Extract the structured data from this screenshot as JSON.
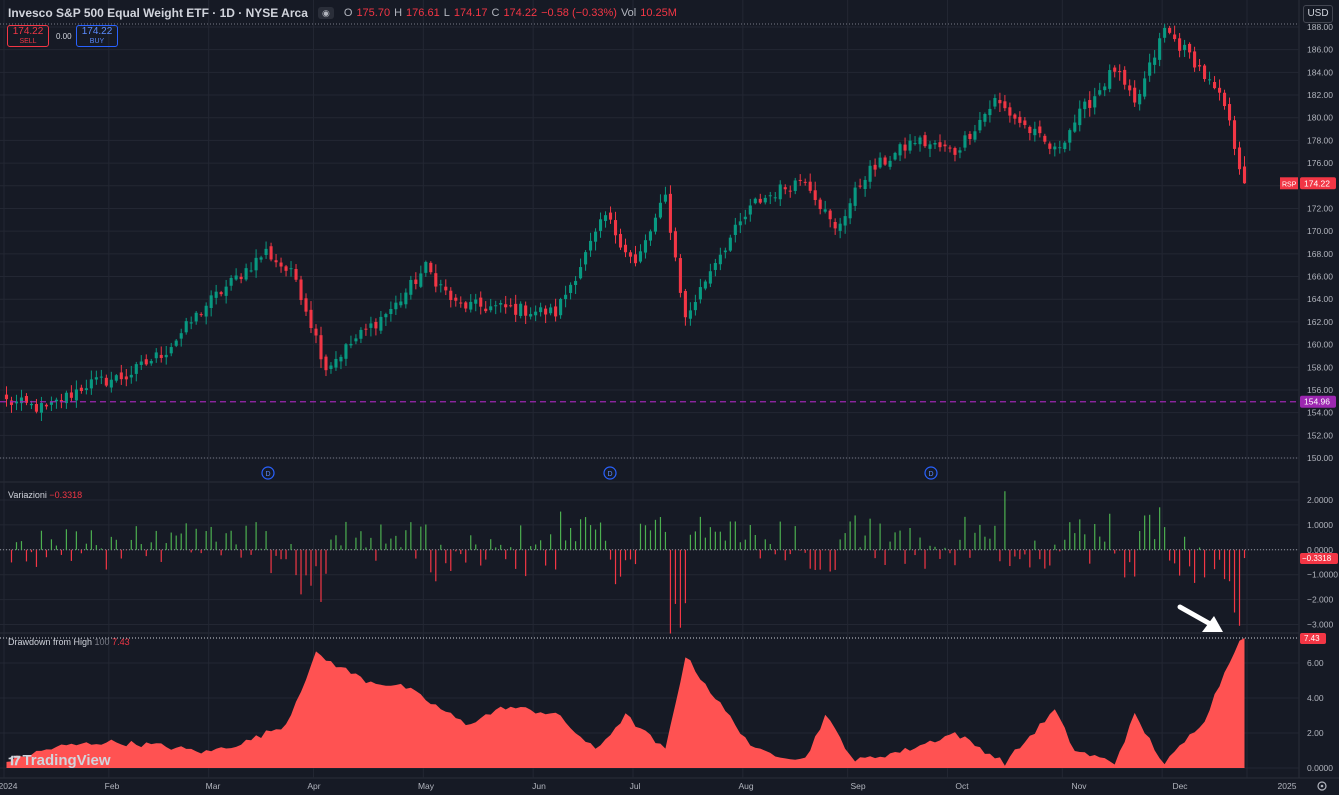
{
  "header": {
    "title": "Invesco S&P 500 Equal Weight ETF · 1D · NYSE Arca",
    "eye_icon": "eye-icon",
    "o_label": "O",
    "o": "175.70",
    "h_label": "H",
    "h": "176.61",
    "l_label": "L",
    "l": "174.17",
    "c_label": "C",
    "c": "174.22",
    "change": "−0.58 (−0.33%)",
    "vol_label": "Vol",
    "vol": "10.25M"
  },
  "trade": {
    "sell_price": "174.22",
    "sell_label": "SELL",
    "spread": "0.00",
    "buy_price": "174.22",
    "buy_label": "BUY"
  },
  "currency": "USD",
  "colors": {
    "bg": "#161a25",
    "up": "#089981",
    "down": "#f23645",
    "hline": "#9c27b0",
    "area": "#ff5252",
    "grid": "#232733",
    "dividend": "#2962ff"
  },
  "main_axis": {
    "ticks": [
      "188.00",
      "186.00",
      "184.00",
      "182.00",
      "180.00",
      "178.00",
      "176.00",
      "174.00",
      "172.00",
      "170.00",
      "168.00",
      "166.00",
      "164.00",
      "162.00",
      "160.00",
      "158.00",
      "156.00",
      "154.00",
      "152.00",
      "150.00"
    ]
  },
  "price_badges": {
    "symbol": "RSP",
    "last": "174.22",
    "hline": "154.96"
  },
  "dividend_marker": "D",
  "xaxis": {
    "labels": [
      "2024",
      "Feb",
      "Mar",
      "Apr",
      "May",
      "Jun",
      "Jul",
      "Aug",
      "Sep",
      "Oct",
      "Nov",
      "Dec",
      "2025"
    ]
  },
  "pane_variazioni": {
    "title": "Variazioni",
    "value": "−0.3318",
    "ticks": [
      "2.0000",
      "1.0000",
      "0.0000",
      "−1.0000",
      "−2.000",
      "−3.000"
    ]
  },
  "pane_drawdown": {
    "title": "Drawdown from High",
    "length": "100",
    "value": "7.43",
    "ticks": [
      "6.00",
      "4.00",
      "2.00",
      "0.0000"
    ]
  },
  "logo_text": "TradingView",
  "settings_icon": "gear-icon",
  "chart_data": [
    {
      "type": "candlestick",
      "title": "Invesco S&P 500 Equal Weight ETF · 1D · NYSE Arca",
      "ylim": [
        150,
        188
      ],
      "hline": 154.96,
      "dividends": [
        "Mar 20",
        "Jun 24",
        "Sep 23"
      ],
      "months": [
        "Jan",
        "Feb",
        "Mar",
        "Apr",
        "May",
        "Jun",
        "Jul",
        "Aug",
        "Sep",
        "Oct",
        "Nov",
        "Dec"
      ],
      "anchors": [
        [
          0,
          155
        ],
        [
          8,
          154.3
        ],
        [
          16,
          156.5
        ],
        [
          24,
          157.2
        ],
        [
          32,
          159.5
        ],
        [
          40,
          163.5
        ],
        [
          52,
          168.2
        ],
        [
          58,
          165.8
        ],
        [
          64,
          158
        ],
        [
          70,
          160.5
        ],
        [
          78,
          163.5
        ],
        [
          84,
          166.8
        ],
        [
          90,
          163.5
        ],
        [
          100,
          163.2
        ],
        [
          110,
          162.8
        ],
        [
          120,
          171.3
        ],
        [
          126,
          167
        ],
        [
          132,
          173
        ],
        [
          136,
          162.2
        ],
        [
          142,
          167.5
        ],
        [
          150,
          172.5
        ],
        [
          160,
          174.8
        ],
        [
          166,
          170
        ],
        [
          172,
          175
        ],
        [
          182,
          178
        ],
        [
          190,
          177
        ],
        [
          198,
          181.5
        ],
        [
          210,
          177
        ],
        [
          214,
          179.7
        ],
        [
          222,
          184.3
        ],
        [
          226,
          181
        ],
        [
          232,
          187.8
        ],
        [
          238,
          185
        ],
        [
          244,
          181
        ],
        [
          248,
          174.22
        ]
      ],
      "last": {
        "o": 175.7,
        "h": 176.61,
        "l": 174.17,
        "c": 174.22
      }
    },
    {
      "type": "bar",
      "title": "Variazioni",
      "ylim": [
        -3.3,
        2.6
      ],
      "last": -0.3318,
      "extremes": {
        "max": 2.35,
        "min": -3.05
      }
    },
    {
      "type": "area",
      "title": "Drawdown from High",
      "length": 100,
      "ylim": [
        0,
        7.6
      ],
      "last": 7.43,
      "anchors": [
        [
          0,
          0.4
        ],
        [
          10,
          1.2
        ],
        [
          20,
          1.5
        ],
        [
          30,
          1.3
        ],
        [
          40,
          0.9
        ],
        [
          48,
          1.5
        ],
        [
          56,
          2.5
        ],
        [
          62,
          6.5
        ],
        [
          72,
          5.0
        ],
        [
          80,
          4.6
        ],
        [
          92,
          2.5
        ],
        [
          100,
          3.5
        ],
        [
          110,
          3.1
        ],
        [
          118,
          1.0
        ],
        [
          124,
          3.0
        ],
        [
          132,
          1.0
        ],
        [
          136,
          6.4
        ],
        [
          142,
          4.0
        ],
        [
          150,
          1.0
        ],
        [
          160,
          0.5
        ],
        [
          164,
          3.0
        ],
        [
          170,
          0.4
        ],
        [
          180,
          1.0
        ],
        [
          190,
          2.0
        ],
        [
          200,
          0.3
        ],
        [
          210,
          3.3
        ],
        [
          214,
          1.0
        ],
        [
          222,
          0.3
        ],
        [
          226,
          3.0
        ],
        [
          232,
          0.2
        ],
        [
          240,
          2.8
        ],
        [
          247,
          7.43
        ]
      ]
    }
  ]
}
